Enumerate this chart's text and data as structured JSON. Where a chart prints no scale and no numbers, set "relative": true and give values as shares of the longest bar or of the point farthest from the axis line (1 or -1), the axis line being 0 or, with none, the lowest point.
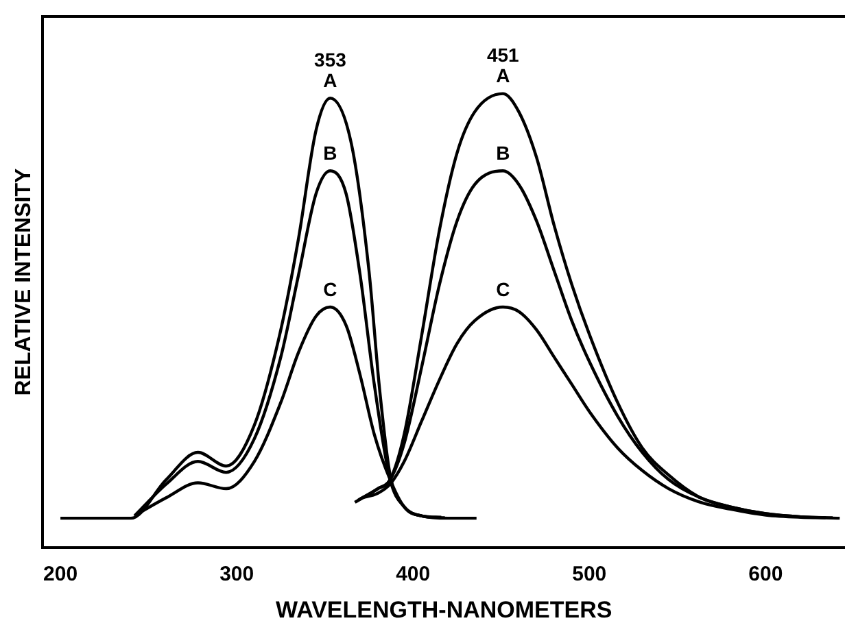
{
  "chart_data": {
    "type": "line",
    "relative": true,
    "xlabel": "WAVELENGTH-NANOMETERS",
    "ylabel": "RELATIVE INTENSITY",
    "xlim": [
      190,
      645
    ],
    "xticks": [
      200,
      300,
      400,
      500,
      600
    ],
    "grid": false,
    "legend": false,
    "tick_labels": "x",
    "marker": "none",
    "line_style": "solid",
    "series": [
      {
        "name": "A",
        "color": "#000000",
        "x": [
          200,
          240,
          260,
          278,
          294,
          310,
          325,
          335,
          345,
          353,
          365,
          375,
          381,
          387,
          395,
          405,
          420,
          436
        ],
        "values": [
          0.065,
          0.065,
          0.15,
          0.21,
          0.18,
          0.27,
          0.48,
          0.68,
          0.92,
          0.99,
          0.89,
          0.61,
          0.35,
          0.16,
          0.09,
          0.07,
          0.065,
          0.065
        ]
      },
      {
        "name": "B",
        "color": "#000000",
        "x": [
          242,
          260,
          278,
          294,
          310,
          325,
          335,
          345,
          353,
          362,
          370,
          378,
          387,
          395,
          405,
          418
        ],
        "values": [
          0.07,
          0.14,
          0.19,
          0.166,
          0.24,
          0.42,
          0.6,
          0.78,
          0.83,
          0.78,
          0.6,
          0.36,
          0.15,
          0.09,
          0.07,
          0.066
        ]
      },
      {
        "name": "C",
        "color": "#000000",
        "x": [
          244,
          260,
          278,
          294,
          310,
          325,
          335,
          345,
          353,
          362,
          370,
          378,
          387,
          395,
          405,
          416
        ],
        "values": [
          0.075,
          0.11,
          0.143,
          0.13,
          0.19,
          0.32,
          0.43,
          0.51,
          0.53,
          0.49,
          0.38,
          0.25,
          0.15,
          0.09,
          0.07,
          0.067
        ]
      },
      {
        "name": "A",
        "color": "#000000",
        "x": [
          367,
          380,
          387,
          395,
          405,
          415,
          425,
          435,
          451,
          460,
          470,
          480,
          490,
          500,
          516,
          530,
          545,
          563,
          580,
          600,
          620,
          642
        ],
        "values": [
          0.1,
          0.13,
          0.15,
          0.25,
          0.47,
          0.7,
          0.87,
          0.96,
          1.0,
          0.96,
          0.86,
          0.71,
          0.58,
          0.47,
          0.32,
          0.22,
          0.16,
          0.11,
          0.09,
          0.075,
          0.068,
          0.065
        ]
      },
      {
        "name": "B",
        "color": "#000000",
        "x": [
          369,
          380,
          387,
          395,
          405,
          415,
          425,
          435,
          451,
          460,
          470,
          480,
          490,
          500,
          516,
          530,
          545,
          563,
          580,
          600,
          620,
          638
        ],
        "values": [
          0.105,
          0.13,
          0.15,
          0.23,
          0.4,
          0.58,
          0.72,
          0.8,
          0.83,
          0.8,
          0.72,
          0.61,
          0.5,
          0.41,
          0.29,
          0.21,
          0.15,
          0.11,
          0.09,
          0.075,
          0.068,
          0.066
        ]
      },
      {
        "name": "C",
        "color": "#000000",
        "x": [
          371,
          380,
          387,
          395,
          405,
          415,
          425,
          435,
          451,
          460,
          470,
          480,
          490,
          500,
          516,
          530,
          545,
          563,
          580,
          600,
          620,
          634
        ],
        "values": [
          0.11,
          0.12,
          0.14,
          0.19,
          0.28,
          0.37,
          0.45,
          0.5,
          0.53,
          0.52,
          0.48,
          0.42,
          0.36,
          0.3,
          0.22,
          0.17,
          0.13,
          0.1,
          0.085,
          0.072,
          0.067,
          0.066
        ]
      }
    ],
    "annotations": [
      {
        "text": "353",
        "x": 353,
        "y": 0.99
      },
      {
        "text": "451",
        "x": 451,
        "y": 1.0
      }
    ]
  }
}
